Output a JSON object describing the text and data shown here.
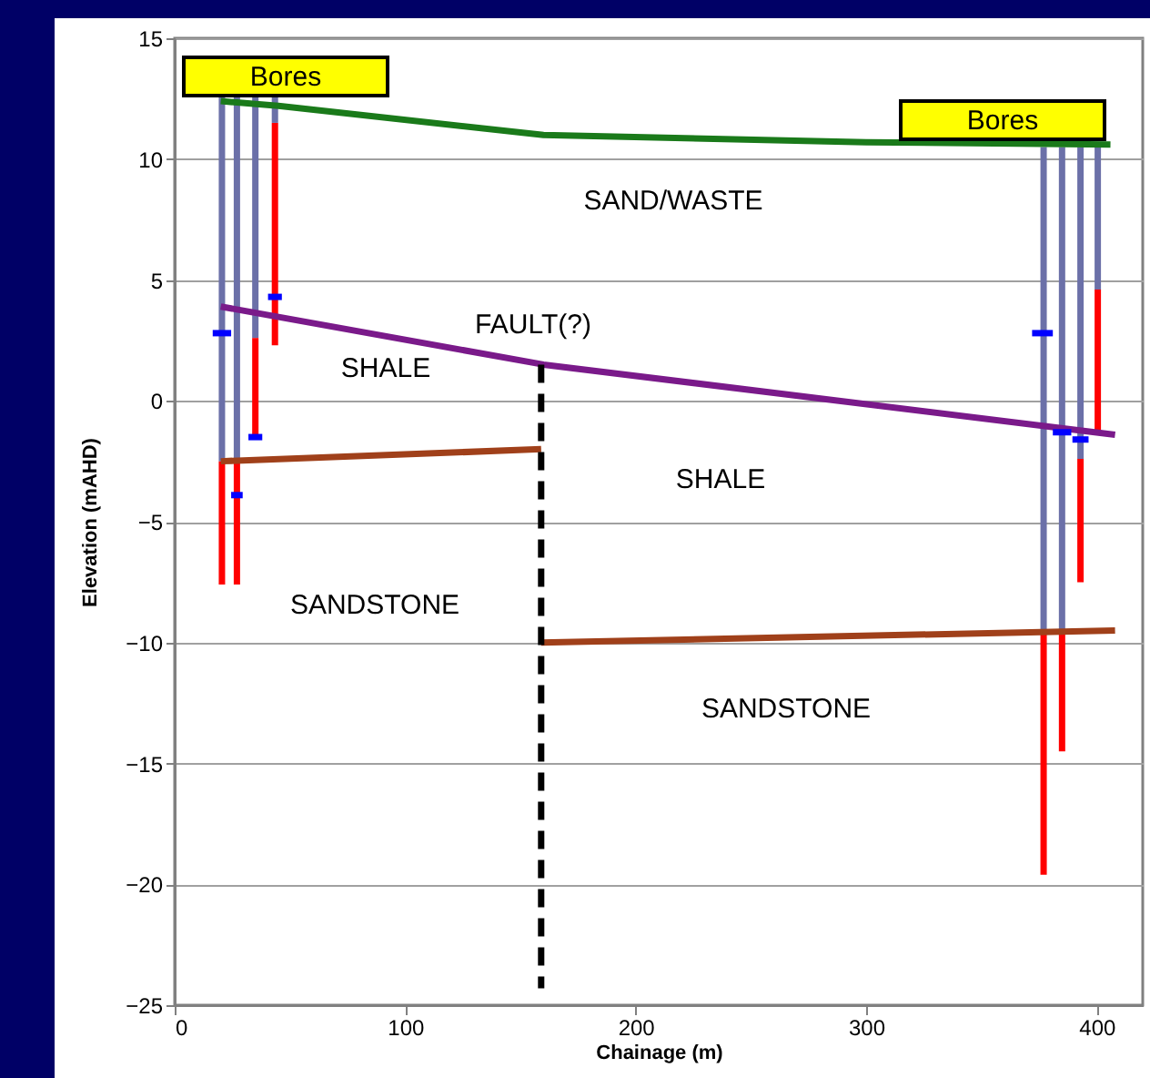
{
  "chart_data": {
    "type": "line",
    "xlabel": "Chainage (m)",
    "ylabel": "Elevation (mAHD)",
    "xlim": [
      0,
      420
    ],
    "xticks": [
      0,
      100,
      200,
      300,
      400
    ],
    "ylim": [
      -25,
      15
    ],
    "yticks": [
      -25,
      -20,
      -15,
      -10,
      -5,
      0,
      5,
      10,
      15
    ],
    "grid": "y",
    "series": [
      {
        "color": "#6b70a8",
        "x": [
          20.5,
          20.5
        ],
        "values": [
          12.6,
          -2.5
        ]
      },
      {
        "color": "#6b70a8",
        "x": [
          27,
          27
        ],
        "values": [
          12.6,
          -2.5
        ]
      },
      {
        "color": "#6b70a8",
        "x": [
          35,
          35
        ],
        "values": [
          12.6,
          2.6
        ]
      },
      {
        "color": "#6b70a8",
        "x": [
          43.5,
          43.5
        ],
        "values": [
          12.6,
          11.5
        ]
      },
      {
        "color": "#6b70a8",
        "x": [
          377,
          377
        ],
        "values": [
          10.5,
          -9.5
        ]
      },
      {
        "color": "#6b70a8",
        "x": [
          385,
          385
        ],
        "values": [
          10.5,
          -9.5
        ]
      },
      {
        "color": "#6b70a8",
        "x": [
          393,
          393
        ],
        "values": [
          10.5,
          -2.4
        ]
      },
      {
        "color": "#6b70a8",
        "x": [
          400.5,
          400.5
        ],
        "values": [
          10.5,
          4.6
        ]
      },
      {
        "color": "#ff0000",
        "x": [
          20.5,
          20.5
        ],
        "values": [
          -2.5,
          -7.6
        ]
      },
      {
        "color": "#ff0000",
        "x": [
          27,
          27
        ],
        "values": [
          -2.5,
          -7.6
        ]
      },
      {
        "color": "#ff0000",
        "x": [
          35,
          35
        ],
        "values": [
          2.6,
          -1.5
        ]
      },
      {
        "color": "#ff0000",
        "x": [
          43.5,
          43.5
        ],
        "values": [
          11.5,
          2.3
        ]
      },
      {
        "color": "#ff0000",
        "x": [
          377,
          377
        ],
        "values": [
          -9.5,
          -19.6
        ]
      },
      {
        "color": "#ff0000",
        "x": [
          385,
          385
        ],
        "values": [
          -9.5,
          -14.5
        ]
      },
      {
        "color": "#ff0000",
        "x": [
          393,
          393
        ],
        "values": [
          -2.4,
          -7.5
        ]
      },
      {
        "color": "#ff0000",
        "x": [
          400.5,
          400.5
        ],
        "values": [
          4.6,
          -1.4
        ]
      },
      {
        "color": "#1a7a1a",
        "x": [
          20,
          45,
          160,
          300,
          406
        ],
        "values": [
          12.4,
          12.2,
          11.0,
          10.7,
          10.6
        ]
      },
      {
        "color": "#7a1a8a",
        "x": [
          20,
          160,
          408
        ],
        "values": [
          3.9,
          1.5,
          -1.4
        ]
      },
      {
        "color": "#a0401a",
        "x": [
          20,
          159
        ],
        "values": [
          -2.5,
          -2.0
        ]
      },
      {
        "color": "#a0401a",
        "x": [
          159,
          408
        ],
        "values": [
          -10.0,
          -9.5
        ]
      },
      {
        "color": "#000000",
        "line_style": "dashed",
        "x": [
          159,
          159
        ],
        "values": [
          1.5,
          -24.3
        ]
      },
      {
        "color": "#0000ff",
        "x": [
          16.5,
          24.5
        ],
        "values": [
          2.8,
          2.8
        ]
      },
      {
        "color": "#0000ff",
        "x": [
          24.5,
          29.5
        ],
        "values": [
          -3.9,
          -3.9
        ]
      },
      {
        "color": "#0000ff",
        "x": [
          32,
          38
        ],
        "values": [
          -1.5,
          -1.5
        ]
      },
      {
        "color": "#0000ff",
        "x": [
          40.5,
          46.5
        ],
        "values": [
          4.3,
          4.3
        ]
      },
      {
        "color": "#0000ff",
        "x": [
          372,
          381
        ],
        "values": [
          2.8,
          2.8
        ]
      },
      {
        "color": "#0000ff",
        "x": [
          381,
          389
        ],
        "values": [
          -1.3,
          -1.3
        ]
      },
      {
        "color": "#0000ff",
        "x": [
          389.5,
          396.5
        ],
        "values": [
          -1.6,
          -1.6
        ]
      }
    ],
    "annotations": [
      "Bores",
      "Bores",
      "SAND/WASTE",
      "FAULT(?)",
      "SHALE",
      "SHALE",
      "SANDSTONE",
      "SANDSTONE"
    ]
  }
}
